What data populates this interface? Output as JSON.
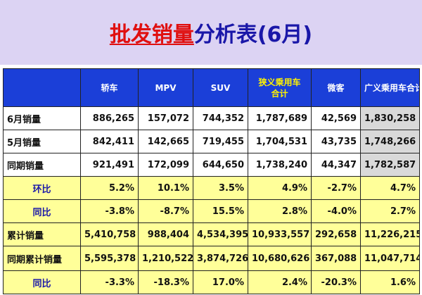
{
  "title": {
    "part1": "批发销量",
    "part2": "分析表(6月)"
  },
  "table": {
    "headers": [
      "",
      "轿车",
      "MPV",
      "SUV",
      "狭义乘用车\n合计",
      "微客",
      "广义乘用车合计"
    ],
    "rows": [
      {
        "label": "6月销量",
        "values": [
          "886,265",
          "157,072",
          "744,352",
          "1,787,689",
          "42,569",
          "1,830,258"
        ]
      },
      {
        "label": "5月销量",
        "values": [
          "842,411",
          "142,665",
          "719,455",
          "1,704,531",
          "43,735",
          "1,748,266"
        ]
      },
      {
        "label": "同期销量",
        "values": [
          "921,491",
          "172,099",
          "644,650",
          "1,738,240",
          "44,347",
          "1,782,587"
        ]
      },
      {
        "label": "环比",
        "values": [
          "5.2%",
          "10.1%",
          "3.5%",
          "4.9%",
          "-2.7%",
          "4.7%"
        ]
      },
      {
        "label": "同比",
        "values": [
          "-3.8%",
          "-8.7%",
          "15.5%",
          "2.8%",
          "-4.0%",
          "2.7%"
        ]
      },
      {
        "label": "累计销量",
        "values": [
          "5,410,758",
          "988,404",
          "4,534,395",
          "10,933,557",
          "292,658",
          "11,226,215"
        ]
      },
      {
        "label": "同期累计销量",
        "values": [
          "5,595,378",
          "1,210,522",
          "3,874,726",
          "10,680,626",
          "367,088",
          "11,047,714"
        ]
      },
      {
        "label": "同比",
        "values": [
          "-3.3%",
          "-18.3%",
          "17.0%",
          "2.4%",
          "-20.3%",
          "1.6%"
        ]
      }
    ]
  },
  "colors": {
    "title_band": "#dcd3f3",
    "header_bg": "#1b3fd8",
    "highlight_header": "#fff200",
    "row_yellow": "#ffff99",
    "total_gray": "#d9d9d9",
    "positive": "#e01010",
    "negative": "#1c8d1c",
    "label_blue": "#1a17a8"
  }
}
